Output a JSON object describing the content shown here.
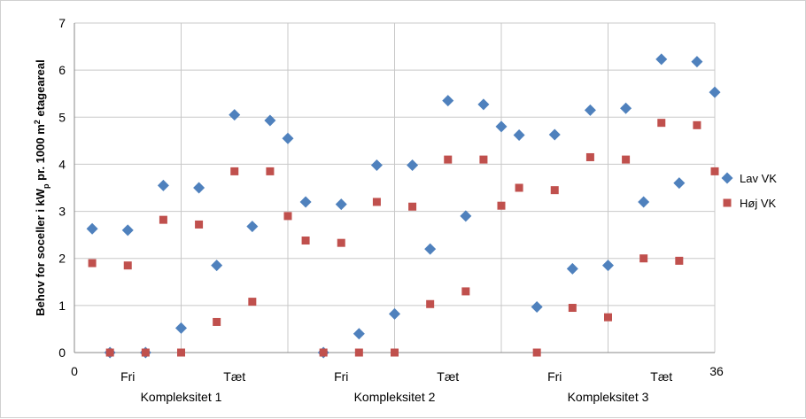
{
  "chart_data": {
    "type": "scatter",
    "title": "",
    "xlabel": "",
    "ylabel_parts": {
      "pre": "Behov for soceller i kW",
      "sub": "p",
      "mid": " pr. 1000 m",
      "sup": "2",
      "post": " etageareal"
    },
    "xlim": [
      0,
      36
    ],
    "ylim": [
      0,
      7
    ],
    "x_tick_labels": [
      "0",
      "36"
    ],
    "y_ticks": [
      "0",
      "1",
      "2",
      "3",
      "4",
      "5",
      "6",
      "7"
    ],
    "grid": true,
    "category_labels": [
      {
        "x": 3,
        "text": "Fri"
      },
      {
        "x": 9,
        "text": "Tæt"
      },
      {
        "x": 15,
        "text": "Fri"
      },
      {
        "x": 21,
        "text": "Tæt"
      },
      {
        "x": 27,
        "text": "Fri"
      },
      {
        "x": 33,
        "text": "Tæt"
      }
    ],
    "group_labels": [
      {
        "x": 6,
        "text": "Kompleksitet 1"
      },
      {
        "x": 18,
        "text": "Kompleksitet 2"
      },
      {
        "x": 30,
        "text": "Kompleksitet 3"
      }
    ],
    "legend_position": "right",
    "series": [
      {
        "name": "Lav VK",
        "color": "#4f81bd",
        "marker": "diamond",
        "x": [
          1,
          2,
          3,
          4,
          5,
          6,
          7,
          8,
          9,
          10,
          11,
          12,
          13,
          14,
          15,
          16,
          17,
          18,
          19,
          20,
          21,
          22,
          23,
          24,
          25,
          26,
          27,
          28,
          29,
          30,
          31,
          32,
          33,
          34,
          35,
          36
        ],
        "y": [
          2.63,
          0.0,
          2.6,
          0.0,
          3.55,
          0.52,
          3.5,
          1.85,
          5.05,
          2.68,
          4.93,
          4.55,
          3.2,
          0.0,
          3.15,
          0.4,
          3.98,
          0.82,
          3.98,
          2.2,
          5.35,
          2.9,
          5.27,
          4.8,
          4.62,
          0.97,
          4.63,
          1.78,
          5.15,
          1.85,
          5.19,
          3.2,
          6.23,
          3.6,
          6.18,
          5.53
        ]
      },
      {
        "name": "Høj VK",
        "color": "#c0504d",
        "marker": "square",
        "x": [
          1,
          2,
          3,
          4,
          5,
          6,
          7,
          8,
          9,
          10,
          11,
          12,
          13,
          14,
          15,
          16,
          17,
          18,
          19,
          20,
          21,
          22,
          23,
          24,
          25,
          26,
          27,
          28,
          29,
          30,
          31,
          32,
          33,
          34,
          35,
          36
        ],
        "y": [
          1.9,
          0.0,
          1.85,
          0.0,
          2.82,
          0.0,
          2.72,
          0.65,
          3.85,
          1.08,
          3.85,
          2.9,
          2.38,
          0.0,
          2.33,
          0.0,
          3.2,
          0.0,
          3.1,
          1.03,
          4.1,
          1.3,
          4.1,
          3.12,
          3.5,
          0.0,
          3.45,
          0.95,
          4.15,
          0.75,
          4.1,
          2.0,
          4.88,
          1.95,
          4.83,
          3.85
        ]
      }
    ]
  }
}
